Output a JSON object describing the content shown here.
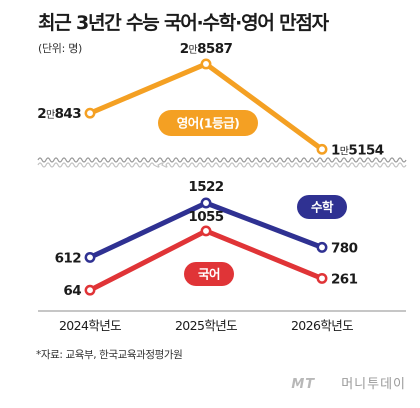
{
  "title": "최근 3년간 수능 국어·수학·영어 만점자",
  "unit": "(단위: 명)",
  "source": "*자료: 교육부, 한국교육과정평가원",
  "watermark": {
    "mt": "MT",
    "brand": "머니투데이"
  },
  "colors": {
    "english": "#f4a023",
    "math": "#2f3192",
    "korean": "#e03437"
  },
  "chart_data": [
    {
      "type": "line",
      "categories": [
        "2024학년도",
        "2025학년도",
        "2026학년도"
      ],
      "series": [
        {
          "name": "영어(1등급)",
          "values": [
            20843,
            28587,
            15154
          ],
          "labels": [
            "2만843",
            "2만8587",
            "1만5154"
          ]
        }
      ]
    },
    {
      "type": "line",
      "categories": [
        "2024학년도",
        "2025학년도",
        "2026학년도"
      ],
      "series": [
        {
          "name": "수학",
          "values": [
            612,
            1522,
            780
          ],
          "labels": [
            "612",
            "1522",
            "780"
          ]
        },
        {
          "name": "국어",
          "values": [
            64,
            1055,
            261
          ],
          "labels": [
            "64",
            "1055",
            "261"
          ]
        }
      ]
    }
  ]
}
